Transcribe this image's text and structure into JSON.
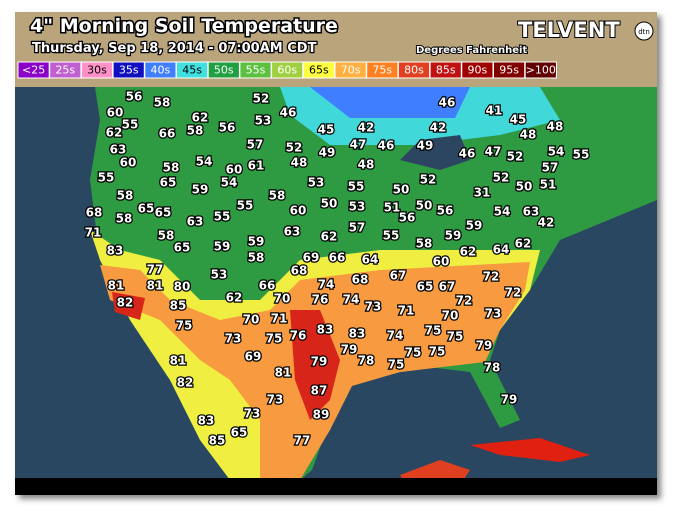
{
  "header": {
    "title": "4\" Morning Soil Temperature",
    "subtitle": "Thursday, Sep 18, 2014 - 07:00AM CDT",
    "units": "Degrees Fahrenheit",
    "logo": "TELVENT",
    "logo_badge": "dtn"
  },
  "legend": [
    {
      "label": "<25",
      "color": "#8a00c8"
    },
    {
      "label": "25s",
      "color": "#c060d0"
    },
    {
      "label": "30s",
      "color": "#ff90c8"
    },
    {
      "label": "35s",
      "color": "#1010c0"
    },
    {
      "label": "40s",
      "color": "#3f7fff"
    },
    {
      "label": "45s",
      "color": "#40e0e0"
    },
    {
      "label": "50s",
      "color": "#20a040"
    },
    {
      "label": "55s",
      "color": "#5cc040"
    },
    {
      "label": "60s",
      "color": "#a0d040"
    },
    {
      "label": "65s",
      "color": "#ffff40"
    },
    {
      "label": "70s",
      "color": "#ffb040"
    },
    {
      "label": "75s",
      "color": "#ff8020"
    },
    {
      "label": "80s",
      "color": "#e04020"
    },
    {
      "label": "85s",
      "color": "#c01010"
    },
    {
      "label": "90s",
      "color": "#a00000"
    },
    {
      "label": "95s",
      "color": "#800000"
    },
    {
      "label": ">100",
      "color": "#600000"
    }
  ],
  "stations": [
    56,
    58,
    60,
    55,
    62,
    63,
    60,
    55,
    58,
    65,
    65,
    68,
    58,
    71,
    83,
    58,
    65,
    77,
    81,
    81,
    82,
    80,
    85,
    75,
    62,
    58,
    56,
    66,
    58,
    65,
    54,
    59,
    54,
    60,
    61,
    57,
    52,
    53,
    46,
    52,
    48,
    45,
    49,
    42,
    47,
    46,
    49,
    46,
    42,
    41,
    45,
    48,
    48,
    46,
    47,
    52,
    54,
    55,
    53,
    58,
    55,
    55,
    63,
    59,
    59,
    58,
    53,
    60,
    50,
    55,
    53,
    48,
    50,
    51,
    56,
    52,
    50,
    56,
    31,
    52,
    50,
    51,
    57,
    63,
    54,
    42,
    63,
    62,
    57,
    55,
    58,
    59,
    59,
    62,
    64,
    62,
    60,
    69,
    66,
    64,
    68,
    68,
    67,
    65,
    67,
    72,
    72,
    72,
    66,
    74,
    62,
    70,
    76,
    74,
    73,
    71,
    70,
    73,
    70,
    71,
    73,
    75,
    76,
    83,
    83,
    74,
    75,
    75,
    69,
    79,
    79,
    78,
    75,
    75,
    75,
    79,
    81,
    81,
    82,
    78,
    87,
    73,
    79,
    89,
    73,
    83,
    65,
    85,
    77
  ]
}
